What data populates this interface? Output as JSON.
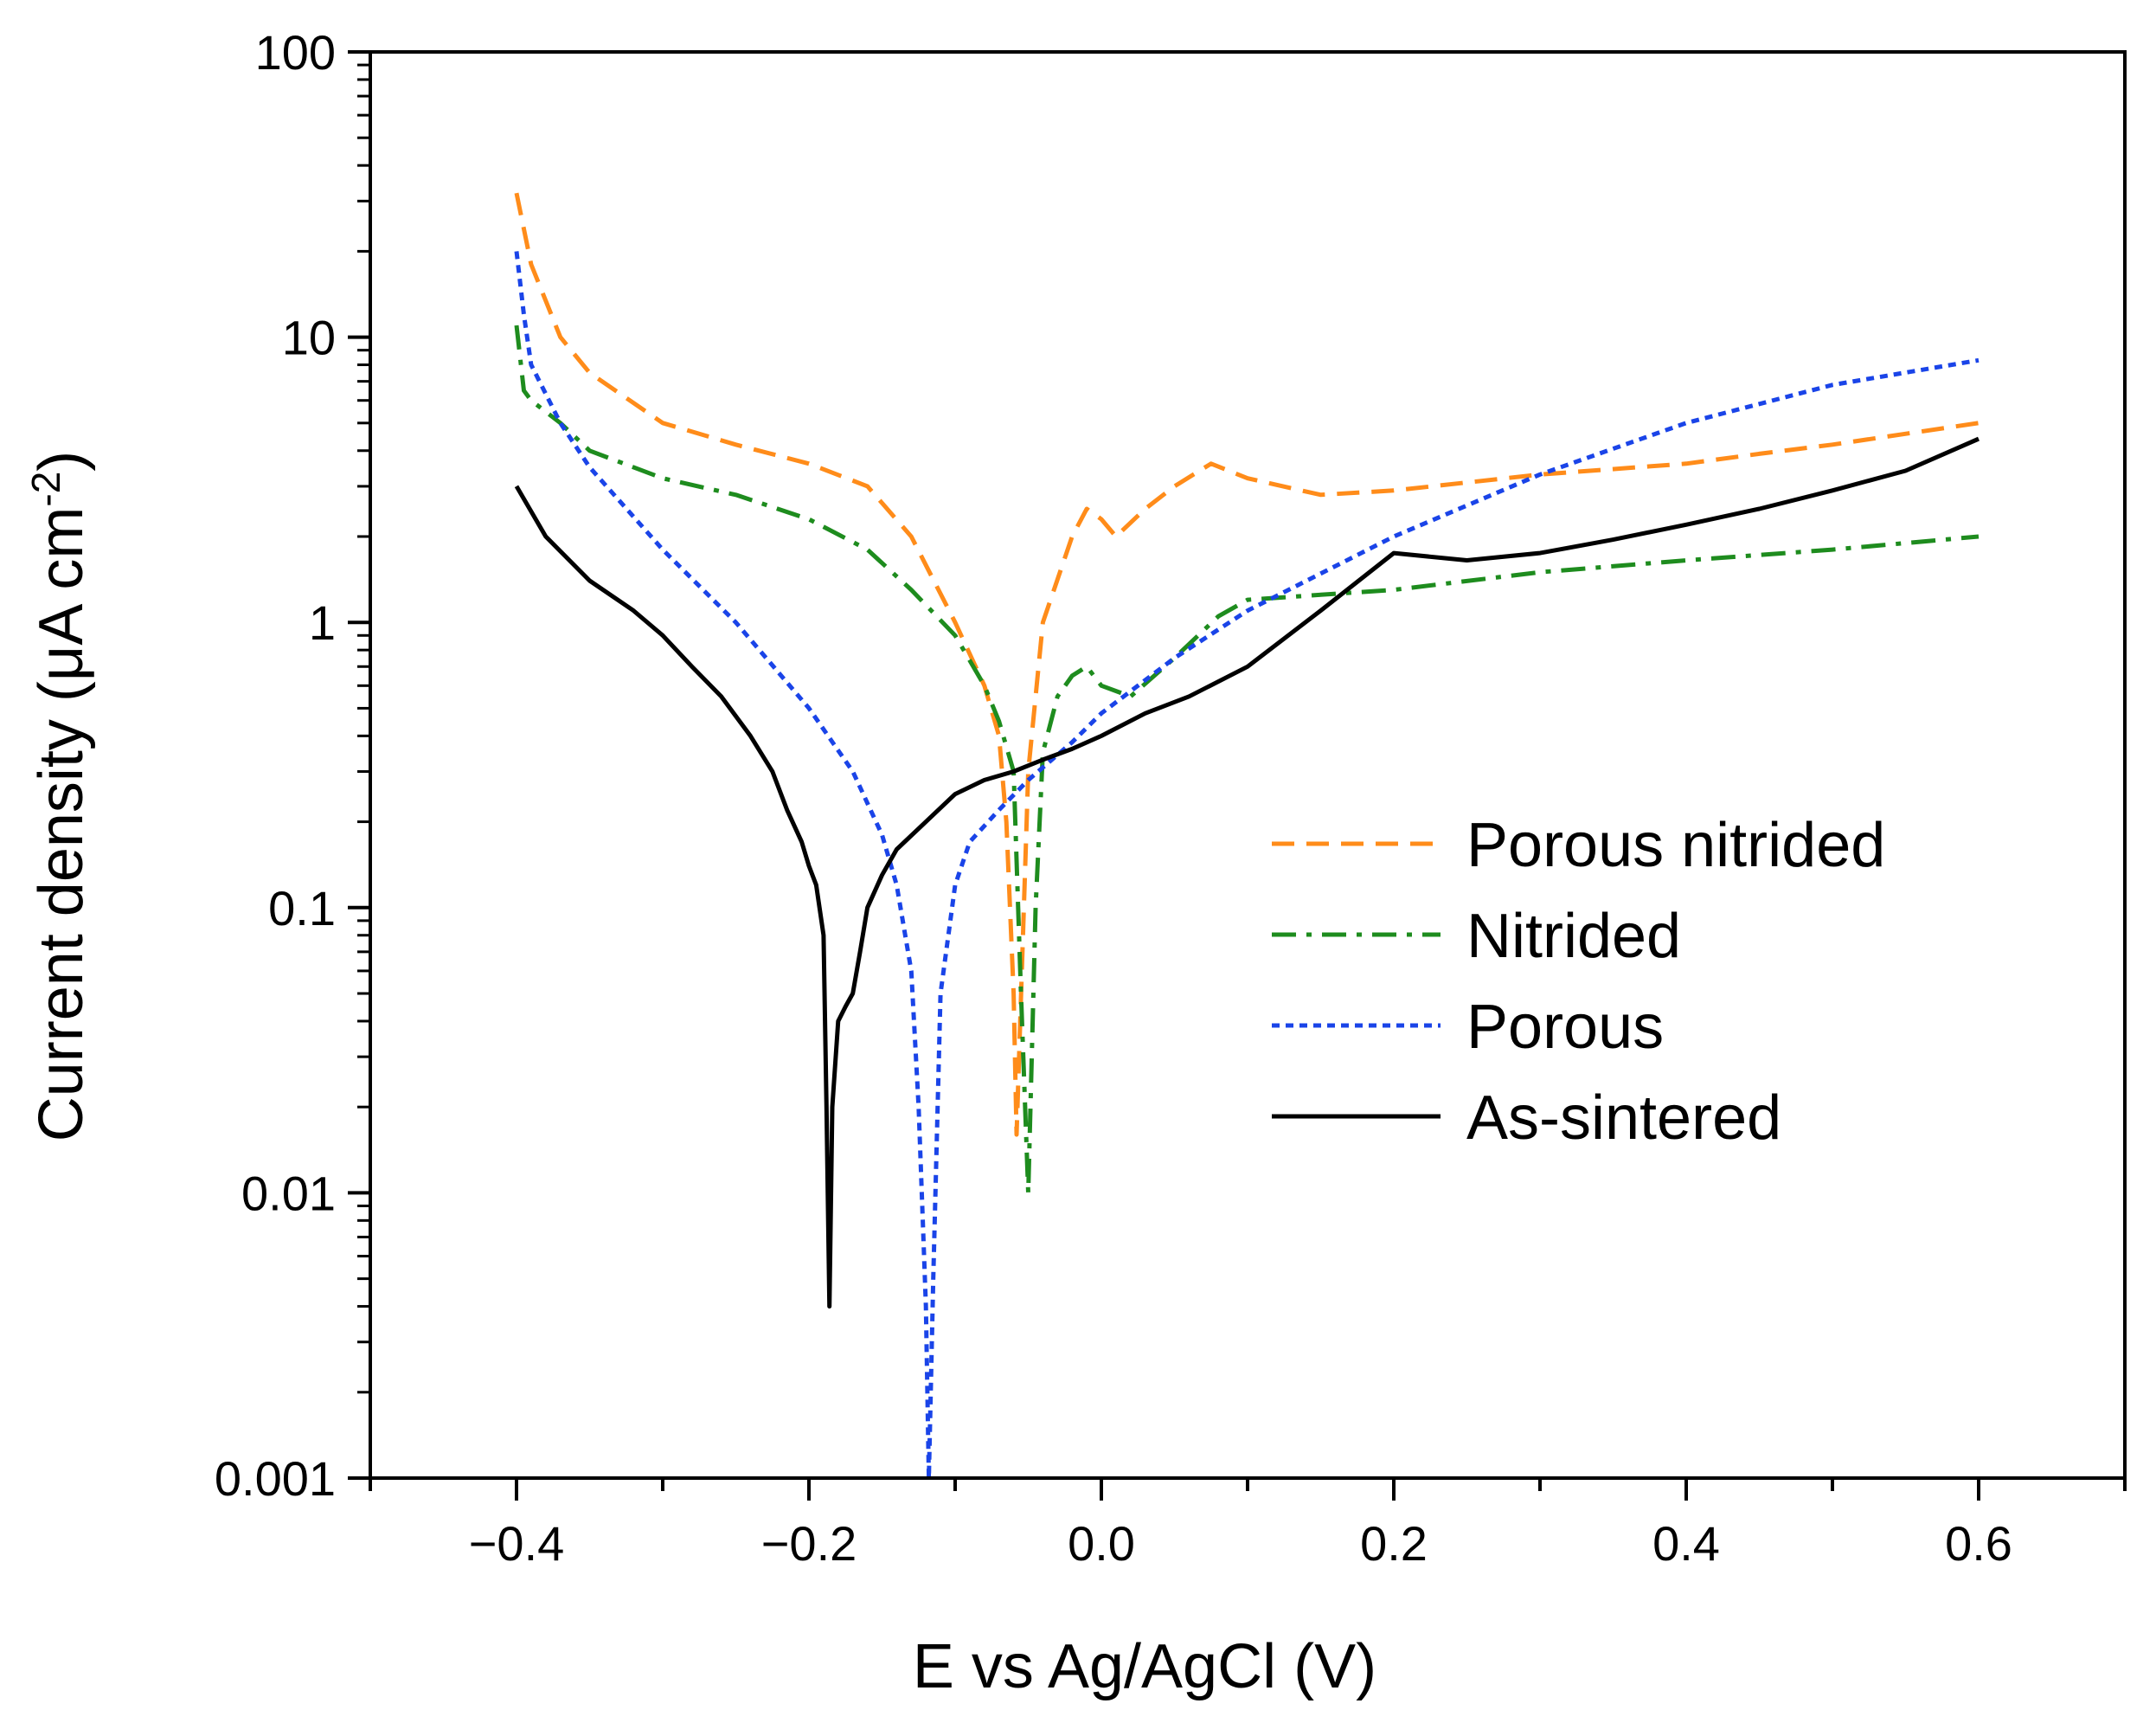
{
  "chart_data": {
    "type": "line",
    "title": "",
    "xlabel": "E vs Ag/AgCl (V)",
    "ylabel": "Current density (μA cm",
    "ylabel_sup": "-2",
    "ylabel_end": ")",
    "xlim": [
      -0.5,
      0.7
    ],
    "ylim": [
      0.001,
      100
    ],
    "yscale": "log",
    "x_ticks": [
      -0.4,
      -0.2,
      0.0,
      0.2,
      0.4,
      0.6
    ],
    "x_tick_labels": [
      "−0.4",
      "−0.2",
      "0.0",
      "0.2",
      "0.4",
      "0.6"
    ],
    "y_ticks": [
      0.001,
      0.01,
      0.1,
      1,
      10,
      100
    ],
    "y_tick_labels": [
      "0.001",
      "0.01",
      "0.1",
      "1",
      "10",
      "100"
    ],
    "legend_position": "center-right",
    "series": [
      {
        "name": "Porous nitrided",
        "color": "#FF8C1A",
        "dash": "dashed",
        "x": [
          -0.4,
          -0.39,
          -0.37,
          -0.35,
          -0.3,
          -0.25,
          -0.2,
          -0.16,
          -0.13,
          -0.1,
          -0.08,
          -0.07,
          -0.065,
          -0.06,
          -0.058,
          -0.05,
          -0.04,
          -0.02,
          -0.01,
          0.0,
          0.01,
          0.03,
          0.05,
          0.075,
          0.1,
          0.15,
          0.2,
          0.3,
          0.4,
          0.45,
          0.5,
          0.6
        ],
        "y": [
          32,
          18,
          10,
          7.5,
          5.0,
          4.2,
          3.6,
          3.0,
          2.0,
          1.0,
          0.6,
          0.4,
          0.2,
          0.05,
          0.016,
          0.3,
          1.0,
          2.0,
          2.5,
          2.3,
          2.0,
          2.5,
          3.0,
          3.6,
          3.2,
          2.8,
          2.9,
          3.3,
          3.6,
          3.9,
          4.2,
          5.0
        ]
      },
      {
        "name": "Nitrided",
        "color": "#1E8C1E",
        "dash": "dashdot",
        "x": [
          -0.4,
          -0.395,
          -0.39,
          -0.37,
          -0.35,
          -0.3,
          -0.25,
          -0.2,
          -0.16,
          -0.13,
          -0.1,
          -0.08,
          -0.07,
          -0.06,
          -0.055,
          -0.05,
          -0.045,
          -0.04,
          -0.03,
          -0.02,
          -0.01,
          0.0,
          0.02,
          0.05,
          0.08,
          0.1,
          0.15,
          0.2,
          0.3,
          0.4,
          0.5,
          0.6
        ],
        "y": [
          11,
          6.5,
          6.0,
          5.0,
          4.0,
          3.2,
          2.8,
          2.3,
          1.8,
          1.3,
          0.9,
          0.6,
          0.45,
          0.3,
          0.05,
          0.01,
          0.1,
          0.35,
          0.55,
          0.65,
          0.7,
          0.6,
          0.55,
          0.75,
          1.05,
          1.2,
          1.25,
          1.3,
          1.5,
          1.65,
          1.8,
          2.0
        ]
      },
      {
        "name": "Porous",
        "color": "#1A44E8",
        "dash": "dotted",
        "x": [
          -0.4,
          -0.395,
          -0.39,
          -0.37,
          -0.35,
          -0.3,
          -0.25,
          -0.2,
          -0.17,
          -0.15,
          -0.14,
          -0.13,
          -0.125,
          -0.12,
          -0.118,
          -0.115,
          -0.11,
          -0.1,
          -0.09,
          -0.07,
          -0.05,
          -0.02,
          0.0,
          0.05,
          0.1,
          0.2,
          0.3,
          0.4,
          0.5,
          0.6
        ],
        "y": [
          20,
          12,
          8.0,
          5.0,
          3.5,
          1.8,
          1.0,
          0.5,
          0.3,
          0.18,
          0.12,
          0.06,
          0.02,
          0.004,
          0.001,
          0.005,
          0.05,
          0.12,
          0.17,
          0.22,
          0.28,
          0.38,
          0.48,
          0.75,
          1.1,
          2.0,
          3.3,
          5.0,
          6.8,
          8.3
        ]
      },
      {
        "name": "As-sintered",
        "color": "#000000",
        "dash": "solid",
        "x": [
          -0.4,
          -0.38,
          -0.35,
          -0.32,
          -0.3,
          -0.28,
          -0.26,
          -0.24,
          -0.225,
          -0.215,
          -0.205,
          -0.2,
          -0.195,
          -0.19,
          -0.188,
          -0.186,
          -0.184,
          -0.18,
          -0.175,
          -0.17,
          -0.165,
          -0.16,
          -0.15,
          -0.14,
          -0.12,
          -0.1,
          -0.08,
          -0.06,
          -0.04,
          -0.02,
          0.0,
          0.03,
          0.06,
          0.1,
          0.15,
          0.2,
          0.25,
          0.3,
          0.35,
          0.4,
          0.45,
          0.5,
          0.55,
          0.6
        ],
        "y": [
          3.0,
          2.0,
          1.4,
          1.1,
          0.9,
          0.7,
          0.55,
          0.4,
          0.3,
          0.22,
          0.17,
          0.14,
          0.12,
          0.08,
          0.02,
          0.004,
          0.02,
          0.04,
          0.045,
          0.05,
          0.07,
          0.1,
          0.13,
          0.16,
          0.2,
          0.25,
          0.28,
          0.3,
          0.33,
          0.36,
          0.4,
          0.48,
          0.55,
          0.7,
          1.1,
          1.75,
          1.65,
          1.75,
          1.95,
          2.2,
          2.5,
          2.9,
          3.4,
          4.4
        ]
      }
    ]
  }
}
